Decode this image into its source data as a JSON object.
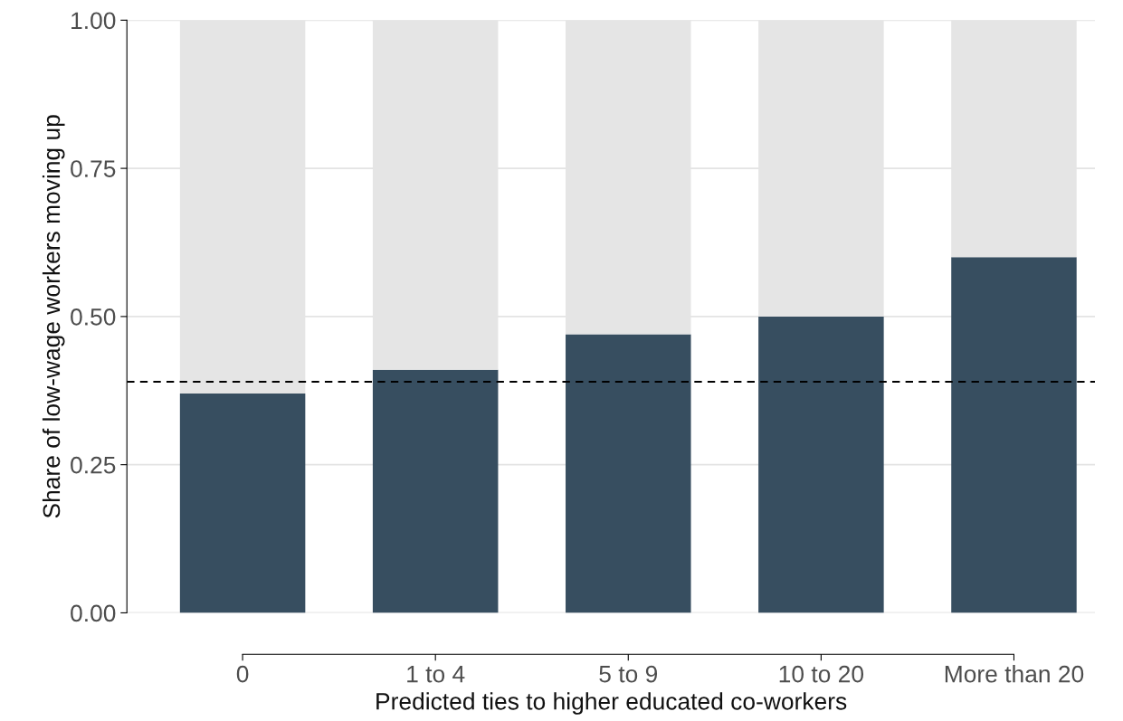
{
  "chart_data": {
    "type": "bar",
    "stacked": true,
    "xlabel": "Predicted ties to higher educated co-workers",
    "ylabel": "Share of low-wage workers moving up",
    "categories": [
      "0",
      "1 to 4",
      "5 to 9",
      "10 to 20",
      "More than 20"
    ],
    "series": [
      {
        "color": "#374e60",
        "values": [
          0.37,
          0.41,
          0.47,
          0.5,
          0.6
        ]
      },
      {
        "color": "#e5e5e5",
        "values": [
          0.63,
          0.59,
          0.53,
          0.5,
          0.4
        ]
      }
    ],
    "ylim": [
      0,
      1
    ],
    "yticks": [
      {
        "value": 0,
        "label": "0.00"
      },
      {
        "value": 0.25,
        "label": "0.25"
      },
      {
        "value": 0.5,
        "label": "0.50"
      },
      {
        "value": 0.75,
        "label": "0.75"
      },
      {
        "value": 1,
        "label": "1.00"
      }
    ],
    "grid": "y",
    "ref_lines": [
      {
        "axis": "y",
        "value": 0.39,
        "color": "#000000",
        "line_style": "dashed"
      }
    ]
  }
}
